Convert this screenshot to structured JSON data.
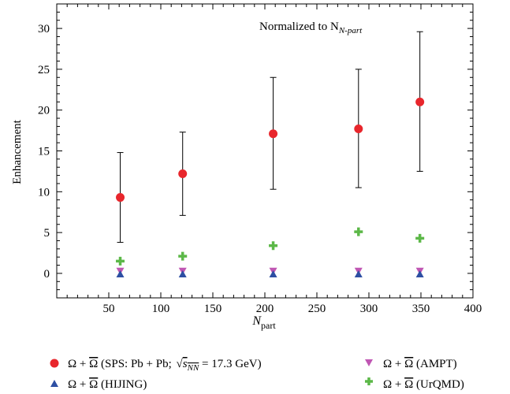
{
  "chart_data": {
    "type": "scatter",
    "title": "",
    "annotation": "Normalized to N",
    "annotation_sub": "N-part",
    "xlabel": "N",
    "xlabel_sub": "part",
    "ylabel": "Enhancement",
    "xlim": [
      0,
      400
    ],
    "ylim": [
      -3,
      33
    ],
    "xticks": [
      50,
      100,
      150,
      200,
      250,
      300,
      350,
      400
    ],
    "yticks": [
      0,
      5,
      10,
      15,
      20,
      25,
      30
    ],
    "grid": false,
    "legend_position": "bottom",
    "series": [
      {
        "key": "sps",
        "marker": "circle",
        "color": "#e8262c",
        "legend": {
          "omega": "Ω + ",
          "omegabar": "Ω",
          "before_sqrt": " (SPS: Pb + Pb; ",
          "sqrt_s": "s",
          "sqrt_sub": "NN",
          "after_sqrt": " = 17.3 GeV)"
        },
        "x": [
          61,
          121,
          208,
          290,
          349
        ],
        "y": [
          9.3,
          12.2,
          17.1,
          17.7,
          21.0
        ],
        "err_low": [
          3.8,
          7.1,
          10.3,
          10.5,
          12.5
        ],
        "err_high": [
          14.8,
          17.3,
          24.0,
          25.0,
          29.6
        ]
      },
      {
        "key": "ampt",
        "marker": "triangle-down",
        "color": "#c056b3",
        "legend": {
          "omega": "Ω + ",
          "omegabar": "Ω",
          "suffix": " (AMPT)"
        },
        "x": [
          61,
          121,
          208,
          290,
          349
        ],
        "y": [
          0.3,
          0.3,
          0.3,
          0.3,
          0.3
        ]
      },
      {
        "key": "hijing",
        "marker": "triangle-up",
        "color": "#2e4fa3",
        "legend": {
          "omega": "Ω + ",
          "omegabar": "Ω",
          "suffix": " (HIJING)"
        },
        "x": [
          61,
          121,
          208,
          290,
          349
        ],
        "y": [
          -0.1,
          -0.1,
          -0.1,
          -0.1,
          -0.1
        ]
      },
      {
        "key": "urqmd",
        "marker": "plus",
        "color": "#5cb848",
        "legend": {
          "omega": "Ω + ",
          "omegabar": "Ω",
          "suffix": " (UrQMD)"
        },
        "x": [
          61,
          121,
          208,
          290,
          349
        ],
        "y": [
          1.5,
          2.1,
          3.4,
          5.1,
          4.3
        ]
      }
    ]
  }
}
